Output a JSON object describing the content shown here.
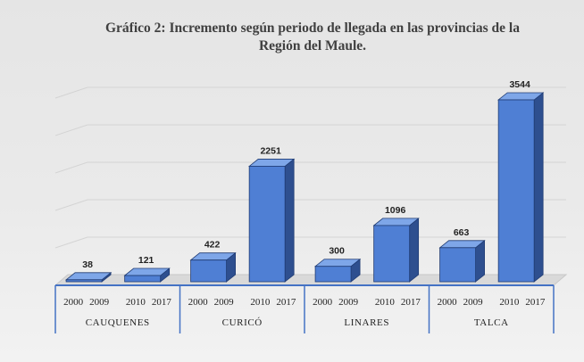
{
  "chart_data": {
    "type": "bar",
    "title_lines": [
      "Gráfico 2: Incremento según periodo de llegada en las provincias de la",
      "Región del Maule."
    ],
    "groups": [
      {
        "name": "CAUQUENES",
        "bars": [
          {
            "period": [
              "2000",
              "2009"
            ],
            "value": 38
          },
          {
            "period": [
              "2010",
              "2017"
            ],
            "value": 121
          }
        ]
      },
      {
        "name": "CURICÓ",
        "bars": [
          {
            "period": [
              "2000",
              "2009"
            ],
            "value": 422
          },
          {
            "period": [
              "2010",
              "2017"
            ],
            "value": 2251
          }
        ]
      },
      {
        "name": "LINARES",
        "bars": [
          {
            "period": [
              "2000",
              "2009"
            ],
            "value": 300
          },
          {
            "period": [
              "2010",
              "2017"
            ],
            "value": 1096
          }
        ]
      },
      {
        "name": "TALCA",
        "bars": [
          {
            "period": [
              "2000",
              "2009"
            ],
            "value": 663
          },
          {
            "period": [
              "2010",
              "2017"
            ],
            "value": 3544
          }
        ]
      }
    ],
    "ylim": [
      0,
      4000
    ],
    "grid": true,
    "legend": "none",
    "style": "3d-column",
    "colors": {
      "front": "#4f7fd4",
      "side": "#2e4f8f",
      "top": "#7ea6e8",
      "edge": "#1f3b73",
      "axis": "#4472c4"
    }
  }
}
